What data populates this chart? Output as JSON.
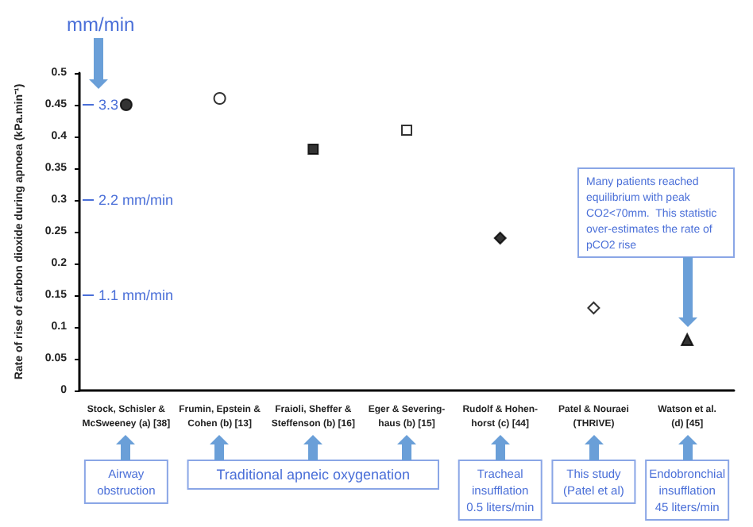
{
  "chart_data": {
    "type": "scatter",
    "ylabel": "Rate of rise of carbon dioxide during apnoea (kPa.min⁻¹)",
    "categories": [
      "Stock, Schisler &\nMcSweeney (a) [38]",
      "Frumin, Epstein &\nCohen (b) [13]",
      "Fraioli, Sheffer &\nSteffenson (b) [16]",
      "Eger & Severing-\nhaus (b) [15]",
      "Rudolf & Hohen-\nhorst (c) [44]",
      "Patel & Nouraei\n(THRIVE)",
      "Watson et al.\n(d) [45]"
    ],
    "series": [
      {
        "marker": "circle",
        "color": "#000000",
        "values": [
          0.45,
          null,
          null,
          null,
          null,
          null,
          null
        ]
      },
      {
        "marker": "circle",
        "color": "#ffffff",
        "values": [
          null,
          0.46,
          null,
          null,
          null,
          null,
          null
        ]
      },
      {
        "marker": "square",
        "color": "#000000",
        "values": [
          null,
          null,
          0.38,
          null,
          null,
          null,
          null
        ]
      },
      {
        "marker": "square",
        "color": "#ffffff",
        "values": [
          null,
          null,
          null,
          0.41,
          null,
          null,
          null
        ]
      },
      {
        "marker": "diamond",
        "color": "#000000",
        "values": [
          null,
          null,
          null,
          null,
          0.24,
          null,
          null
        ]
      },
      {
        "marker": "diamond",
        "color": "#ffffff",
        "values": [
          null,
          null,
          null,
          null,
          null,
          0.13,
          null
        ]
      },
      {
        "marker": "triangle",
        "color": "#000000",
        "values": [
          null,
          null,
          null,
          null,
          null,
          null,
          0.08
        ]
      }
    ],
    "ylim": [
      0,
      0.5
    ],
    "yticks": [
      0,
      0.05,
      0.1,
      0.15,
      0.2,
      0.25,
      0.3,
      0.35,
      0.4,
      0.45,
      0.5
    ],
    "annotations": [
      "mm/min",
      "3.3",
      "2.2 mm/min",
      "1.1 mm/min",
      "Many patients reached\nequilibrium with peak\nCO2<70mm.  This statistic\nover-estimates the rate of\npCO2 rise",
      "Airway\nobstruction",
      "Traditional apneic oxygenation",
      "Tracheal\ninsufflation\n0.5 liters/min",
      "This study\n(Patel et al)",
      "Endobronchial\ninsufflation\n45 liters/min"
    ]
  }
}
